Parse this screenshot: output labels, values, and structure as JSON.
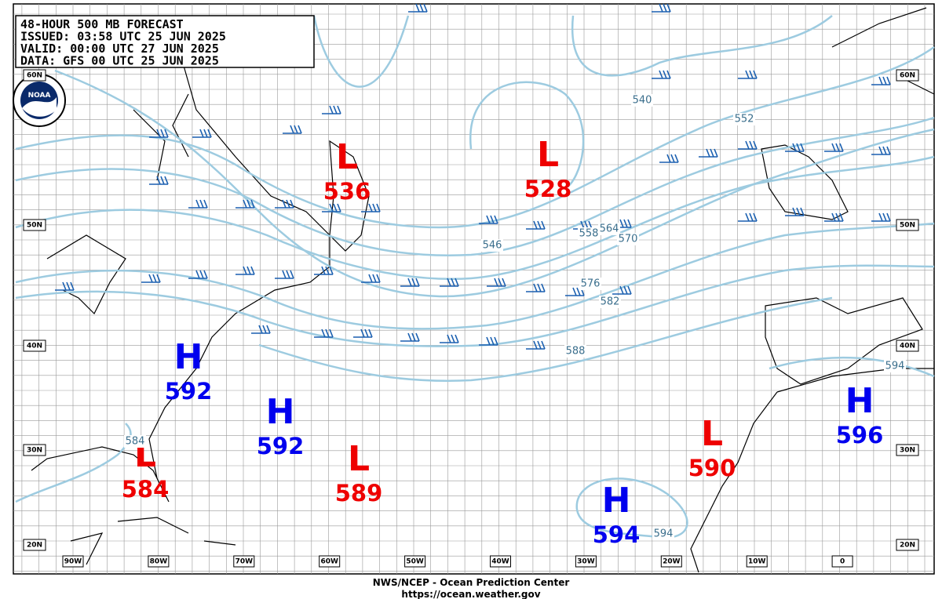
{
  "header": {
    "lines": [
      "48-HOUR 500 MB FORECAST",
      "ISSUED: 03:58 UTC 25 JUN 2025",
      "VALID:  00:00 UTC 27 JUN 2025",
      "DATA:   GFS 00 UTC 25 JUN 2025"
    ]
  },
  "logo": "NOAA",
  "centers": [
    {
      "type": "L",
      "value": 536
    },
    {
      "type": "L",
      "value": 528
    },
    {
      "type": "H",
      "value": 592
    },
    {
      "type": "H",
      "value": 592
    },
    {
      "type": "L",
      "value": 584
    },
    {
      "type": "L",
      "value": 589
    },
    {
      "type": "L",
      "value": 590
    },
    {
      "type": "H",
      "value": 594
    },
    {
      "type": "H",
      "value": 596
    }
  ],
  "contour_labels": [
    540,
    552,
    546,
    558,
    564,
    570,
    576,
    582,
    588,
    594,
    594,
    584
  ],
  "lat_labels_left": [
    "60N",
    "50N",
    "40N",
    "30N",
    "20N"
  ],
  "lat_labels_right": [
    "60N",
    "50N",
    "40N",
    "30N",
    "20N"
  ],
  "lon_labels": [
    "90W",
    "80W",
    "70W",
    "60W",
    "50W",
    "40W",
    "30W",
    "20W",
    "10W",
    "0"
  ],
  "footer": [
    "NWS/NCEP - Ocean Prediction Center",
    "https://ocean.weather.gov"
  ]
}
